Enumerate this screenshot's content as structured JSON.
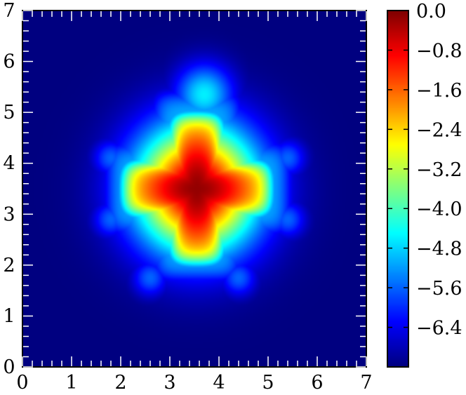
{
  "chart_data": {
    "type": "heatmap",
    "title": "",
    "xlabel": "",
    "ylabel": "",
    "xlim": [
      0,
      7
    ],
    "ylim": [
      0,
      7
    ],
    "x_ticks": [
      "0",
      "1",
      "2",
      "3",
      "4",
      "5",
      "6",
      "7"
    ],
    "y_ticks": [
      "0",
      "1",
      "2",
      "3",
      "4",
      "5",
      "6",
      "7"
    ],
    "colorbar": {
      "range": [
        -7.2,
        0.0
      ],
      "ticks": [
        0.0,
        -0.8,
        -1.6,
        -2.4,
        -3.2,
        -4.0,
        -4.8,
        -5.6,
        -6.4
      ],
      "tick_labels": [
        "0.0",
        "−0.8",
        "−1.6",
        "−2.4",
        "−3.2",
        "−4.0",
        "−4.8",
        "−5.6",
        "−6.4"
      ],
      "colormap": "jet"
    },
    "field": {
      "background_value": -7.2,
      "peak": {
        "x": 3.55,
        "y": 3.5,
        "value": 0.0
      },
      "cross_arms": [
        {
          "direction": "up",
          "extent_y": 5.0,
          "half_width": 0.55
        },
        {
          "direction": "down",
          "extent_y": 2.0,
          "half_width": 0.55
        },
        {
          "direction": "left",
          "extent_x": 2.0,
          "half_width": 0.55
        },
        {
          "direction": "right",
          "extent_x": 5.1,
          "half_width": 0.55
        }
      ],
      "halo_lobes": [
        {
          "x": 3.7,
          "y": 5.35,
          "value": -4.6
        },
        {
          "x": 1.8,
          "y": 4.1,
          "value": -5.6
        },
        {
          "x": 5.4,
          "y": 4.1,
          "value": -5.6
        },
        {
          "x": 1.8,
          "y": 2.9,
          "value": -5.6
        },
        {
          "x": 5.4,
          "y": 2.9,
          "value": -5.6
        },
        {
          "x": 2.6,
          "y": 1.75,
          "value": -5.6
        },
        {
          "x": 4.4,
          "y": 1.75,
          "value": -5.6
        }
      ]
    }
  }
}
